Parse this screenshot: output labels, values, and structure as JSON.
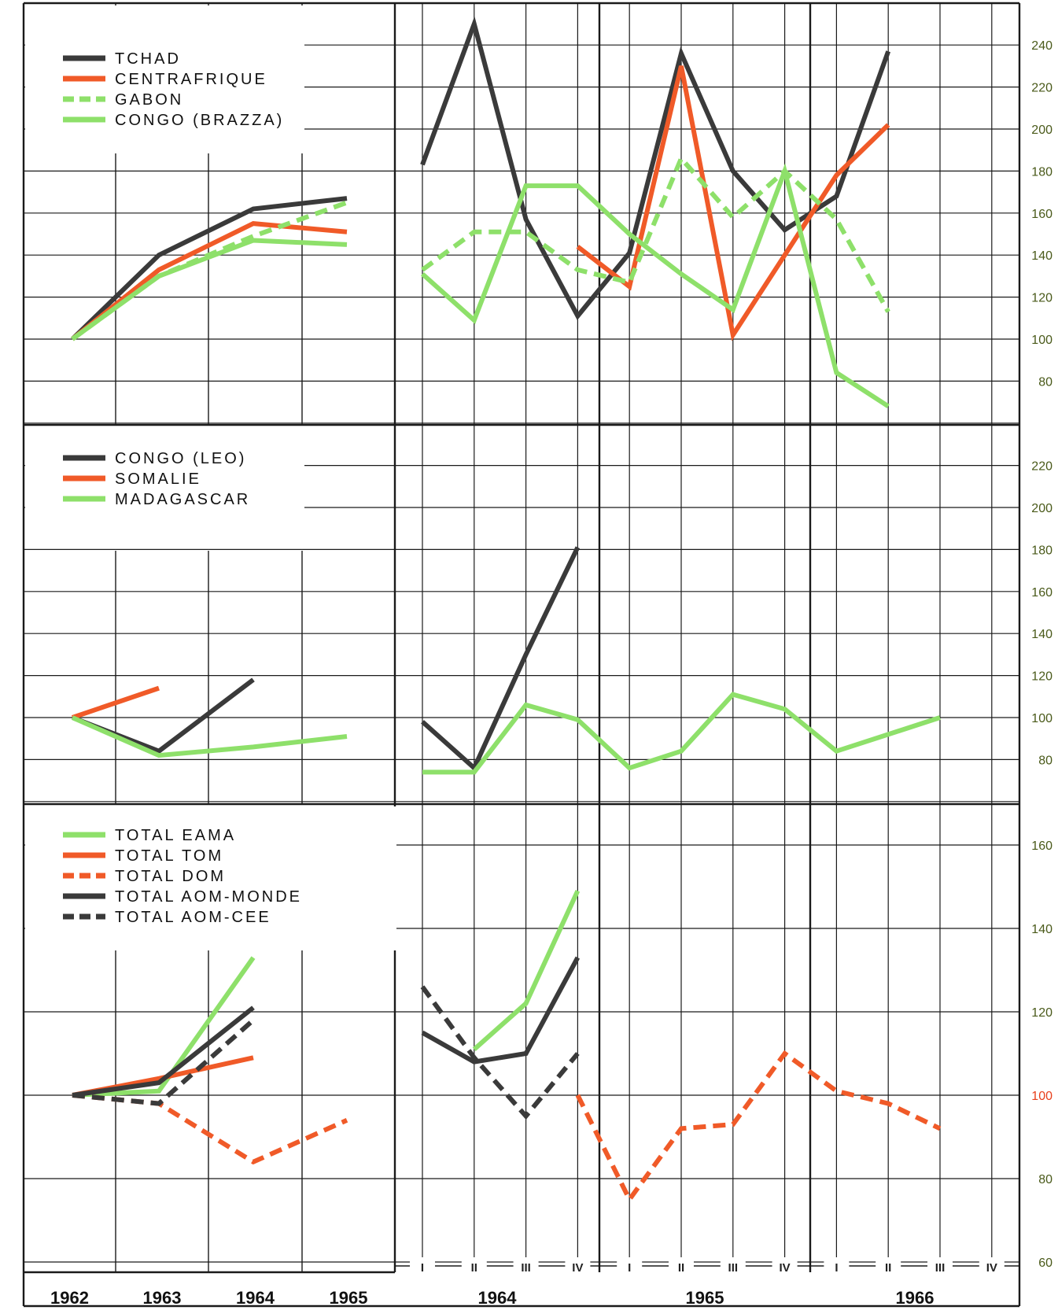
{
  "colors": {
    "black": "#3a3a3a",
    "orange": "#f05a28",
    "green": "#8ee06a",
    "grid": "#1a1a1a",
    "tick": "#4a5a1a",
    "highlight_tick": "#e8401c"
  },
  "years_annual": [
    "1962",
    "1963",
    "1964",
    "1965"
  ],
  "years_quarterly": [
    "1964",
    "1965",
    "1966"
  ],
  "quarter_labels": [
    "I",
    "II",
    "III",
    "IV"
  ],
  "chart_data": [
    {
      "type": "line",
      "title": "",
      "y_ticks": [
        "240",
        "220",
        "200",
        "180",
        "160",
        "140",
        "120",
        "100",
        "80"
      ],
      "ylim": [
        65,
        255
      ],
      "legend": [
        {
          "name": "TCHAD",
          "color": "black",
          "dash": false
        },
        {
          "name": "CENTRAFRIQUE",
          "color": "orange",
          "dash": false
        },
        {
          "name": "GABON",
          "color": "green",
          "dash": true
        },
        {
          "name": "CONGO (BRAZZA)",
          "color": "green",
          "dash": false
        }
      ],
      "annual_series": [
        {
          "name": "TCHAD",
          "x": [
            1962,
            1963,
            1964,
            1965
          ],
          "values": [
            100,
            140,
            162,
            167
          ]
        },
        {
          "name": "CENTRAFRIQUE",
          "x": [
            1962,
            1963,
            1964,
            1965
          ],
          "values": [
            100,
            133,
            155,
            151
          ]
        },
        {
          "name": "GABON",
          "x": [
            1962,
            1963,
            1964,
            1965
          ],
          "values": [
            100,
            130,
            149,
            165
          ]
        },
        {
          "name": "CONGO (BRAZZA)",
          "x": [
            1962,
            1963,
            1964,
            1965
          ],
          "values": [
            100,
            130,
            147,
            145
          ]
        }
      ],
      "quarterly_series": [
        {
          "name": "TCHAD",
          "x": [
            "1964-I",
            "1964-II",
            "1964-III",
            "1964-IV",
            "1965-I",
            "1965-II",
            "1965-III",
            "1965-IV",
            "1966-I",
            "1966-II"
          ],
          "values": [
            183,
            250,
            157,
            111,
            141,
            236,
            180,
            152,
            168,
            237
          ]
        },
        {
          "name": "CENTRAFRIQUE",
          "x": [
            "1964-IV",
            "1965-I",
            "1965-II",
            "1965-III",
            "1965-IV",
            "1966-I",
            "1966-II"
          ],
          "values": [
            144,
            125,
            230,
            102,
            140,
            178,
            202
          ]
        },
        {
          "name": "GABON",
          "x": [
            "1964-I",
            "1964-II",
            "1964-III",
            "1964-IV",
            "1965-I",
            "1965-II",
            "1965-III",
            "1965-IV",
            "1966-I",
            "1966-II"
          ],
          "values": [
            133,
            151,
            151,
            133,
            127,
            186,
            158,
            180,
            157,
            113
          ]
        },
        {
          "name": "CONGO (BRAZZA)",
          "x": [
            "1964-I",
            "1964-II",
            "1964-III",
            "1964-IV",
            "1965-I",
            "1965-II",
            "1965-III",
            "1965-IV",
            "1966-I",
            "1966-II"
          ],
          "values": [
            131,
            109,
            173,
            173,
            150,
            131,
            114,
            180,
            84,
            68
          ]
        }
      ]
    },
    {
      "type": "line",
      "title": "",
      "y_ticks": [
        "220",
        "200",
        "180",
        "160",
        "140",
        "120",
        "100",
        "80"
      ],
      "ylim": [
        60,
        245
      ],
      "legend": [
        {
          "name": "CONGO (LEO)",
          "color": "black",
          "dash": false
        },
        {
          "name": "SOMALIE",
          "color": "orange",
          "dash": false
        },
        {
          "name": "MADAGASCAR",
          "color": "green",
          "dash": false
        }
      ],
      "annual_series": [
        {
          "name": "CONGO (LEO)",
          "x": [
            1962,
            1963,
            1964
          ],
          "values": [
            100,
            84,
            118
          ]
        },
        {
          "name": "SOMALIE",
          "x": [
            1962,
            1963
          ],
          "values": [
            100,
            114
          ]
        },
        {
          "name": "MADAGASCAR",
          "x": [
            1962,
            1963,
            1964,
            1965
          ],
          "values": [
            100,
            82,
            86,
            91
          ]
        }
      ],
      "quarterly_series": [
        {
          "name": "CONGO (LEO)",
          "x": [
            "1964-I",
            "1964-II",
            "1964-III",
            "1964-IV"
          ],
          "values": [
            98,
            76,
            130,
            181
          ]
        },
        {
          "name": "MADAGASCAR",
          "x": [
            "1964-I",
            "1964-II",
            "1964-III",
            "1964-IV",
            "1965-I",
            "1965-II",
            "1965-III",
            "1965-IV",
            "1966-I",
            "1966-II",
            "1966-III"
          ],
          "values": [
            74,
            74,
            106,
            99,
            76,
            84,
            111,
            104,
            84,
            92,
            100
          ]
        }
      ]
    },
    {
      "type": "line",
      "title": "",
      "y_ticks": [
        "160",
        "140",
        "120",
        "100",
        "80",
        "60"
      ],
      "ylim": [
        56,
        176
      ],
      "highlight_tick": "100",
      "legend": [
        {
          "name": "TOTAL EAMA",
          "color": "green",
          "dash": false
        },
        {
          "name": "TOTAL TOM",
          "color": "orange",
          "dash": false
        },
        {
          "name": "TOTAL DOM",
          "color": "orange",
          "dash": true
        },
        {
          "name": "TOTAL AOM-MONDE",
          "color": "black",
          "dash": false
        },
        {
          "name": "TOTAL AOM-CEE",
          "color": "black",
          "dash": true
        }
      ],
      "annual_series": [
        {
          "name": "TOTAL EAMA",
          "x": [
            1962,
            1963,
            1964
          ],
          "values": [
            100,
            101,
            133
          ]
        },
        {
          "name": "TOTAL TOM",
          "x": [
            1962,
            1963,
            1964
          ],
          "values": [
            100,
            104,
            109
          ]
        },
        {
          "name": "TOTAL DOM",
          "x": [
            1962,
            1963,
            1964,
            1965
          ],
          "values": [
            100,
            98,
            84,
            94
          ]
        },
        {
          "name": "TOTAL AOM-MONDE",
          "x": [
            1962,
            1963,
            1964
          ],
          "values": [
            100,
            103,
            121
          ]
        },
        {
          "name": "TOTAL AOM-CEE",
          "x": [
            1962,
            1963,
            1964
          ],
          "values": [
            100,
            98,
            118
          ]
        }
      ],
      "quarterly_series": [
        {
          "name": "TOTAL EAMA",
          "x": [
            "1964-II",
            "1964-III",
            "1964-IV"
          ],
          "values": [
            111,
            122,
            149
          ]
        },
        {
          "name": "TOTAL DOM",
          "x": [
            "1964-IV",
            "1965-I",
            "1965-II",
            "1965-III",
            "1965-IV",
            "1966-I",
            "1966-II",
            "1966-III"
          ],
          "values": [
            100,
            75,
            92,
            93,
            110,
            101,
            98,
            92
          ]
        },
        {
          "name": "TOTAL AOM-MONDE",
          "x": [
            "1964-I",
            "1964-II",
            "1964-III",
            "1964-IV"
          ],
          "values": [
            115,
            108,
            110,
            133
          ]
        },
        {
          "name": "TOTAL AOM-CEE",
          "x": [
            "1964-I",
            "1964-II",
            "1964-III",
            "1964-IV"
          ],
          "values": [
            126,
            109,
            95,
            110
          ]
        }
      ]
    }
  ]
}
